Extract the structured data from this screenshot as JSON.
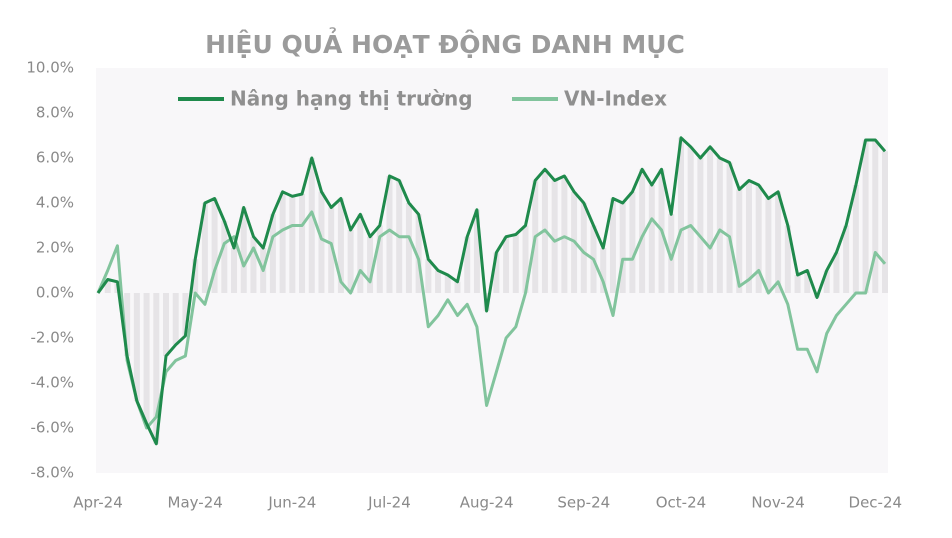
{
  "chart_data": {
    "type": "line",
    "title": "HIỆU QUẢ HOẠT ĐỘNG DANH MỤC",
    "categories": [
      "Apr-24",
      null,
      null,
      null,
      null,
      null,
      null,
      null,
      null,
      null,
      "May-24",
      null,
      null,
      null,
      null,
      null,
      null,
      null,
      null,
      null,
      "Jun-24",
      null,
      null,
      null,
      null,
      null,
      null,
      null,
      null,
      null,
      "Jul-24",
      null,
      null,
      null,
      null,
      null,
      null,
      null,
      null,
      null,
      "Aug-24",
      null,
      null,
      null,
      null,
      null,
      null,
      null,
      null,
      null,
      "Sep-24",
      null,
      null,
      null,
      null,
      null,
      null,
      null,
      null,
      null,
      "Oct-24",
      null,
      null,
      null,
      null,
      null,
      null,
      null,
      null,
      null,
      "Nov-24",
      null,
      null,
      null,
      null,
      null,
      null,
      null,
      null,
      null,
      "Dec-24",
      null
    ],
    "series": [
      {
        "name": "Nâng hạng thị trường",
        "color": "#1f8a4c",
        "values": [
          0.0,
          0.6,
          0.5,
          -2.8,
          -4.8,
          -5.8,
          -6.7,
          -2.8,
          -2.3,
          -1.9,
          1.5,
          4.0,
          4.2,
          3.2,
          2.0,
          3.8,
          2.5,
          2.0,
          3.5,
          4.5,
          4.3,
          4.4,
          6.0,
          4.5,
          3.8,
          4.2,
          2.8,
          3.5,
          2.5,
          3.0,
          5.2,
          5.0,
          4.0,
          3.5,
          1.5,
          1.0,
          0.8,
          0.5,
          2.5,
          3.7,
          -0.8,
          1.8,
          2.5,
          2.6,
          3.0,
          5.0,
          5.5,
          5.0,
          5.2,
          4.5,
          4.0,
          3.0,
          2.0,
          4.2,
          4.0,
          4.5,
          5.5,
          4.8,
          5.5,
          3.5,
          6.9,
          6.5,
          6.0,
          6.5,
          6.0,
          5.8,
          4.6,
          5.0,
          4.8,
          4.2,
          4.5,
          3.0,
          0.8,
          1.0,
          -0.2,
          1.0,
          1.8,
          3.0,
          4.8,
          6.8,
          6.8,
          6.3
        ]
      },
      {
        "name": "VN-Index",
        "color": "#82c49d",
        "values": [
          0.0,
          1.0,
          2.1,
          -3.0,
          -4.8,
          -6.0,
          -5.5,
          -3.5,
          -3.0,
          -2.8,
          0.0,
          -0.5,
          1.0,
          2.2,
          2.5,
          1.2,
          2.0,
          1.0,
          2.5,
          2.8,
          3.0,
          3.0,
          3.6,
          2.4,
          2.2,
          0.5,
          0.0,
          1.0,
          0.5,
          2.5,
          2.8,
          2.5,
          2.5,
          1.5,
          -1.5,
          -1.0,
          -0.3,
          -1.0,
          -0.5,
          -1.5,
          -5.0,
          -3.5,
          -2.0,
          -1.5,
          0.0,
          2.5,
          2.8,
          2.3,
          2.5,
          2.3,
          1.8,
          1.5,
          0.5,
          -1.0,
          1.5,
          1.5,
          2.5,
          3.3,
          2.8,
          1.5,
          2.8,
          3.0,
          2.5,
          2.0,
          2.8,
          2.5,
          0.3,
          0.6,
          1.0,
          0.0,
          0.5,
          -0.5,
          -2.5,
          -2.5,
          -3.5,
          -1.8,
          -1.0,
          -0.5,
          0.0,
          0.0,
          1.8,
          1.3
        ]
      }
    ],
    "bar_color": "#e6e4e7",
    "ylim": [
      -8,
      10
    ],
    "yticks": [
      {
        "value": -8,
        "label": "-8.0%"
      },
      {
        "value": -6,
        "label": "-6.0%"
      },
      {
        "value": -4,
        "label": "-4.0%"
      },
      {
        "value": -2,
        "label": "-2.0%"
      },
      {
        "value": 0,
        "label": "0.0%"
      },
      {
        "value": 2,
        "label": "2.0%"
      },
      {
        "value": 4,
        "label": "4.0%"
      },
      {
        "value": 6,
        "label": "6.0%"
      },
      {
        "value": 8,
        "label": "8.0%"
      },
      {
        "value": 10,
        "label": "10.0%"
      }
    ]
  }
}
